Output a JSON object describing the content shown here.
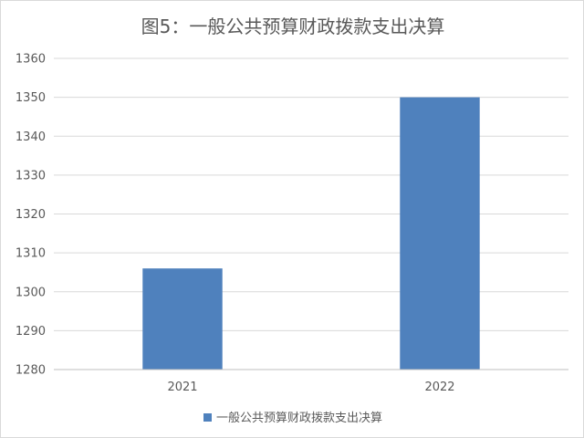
{
  "chart_data": {
    "type": "bar",
    "title": "图5：一般公共预算财政拨款支出决算",
    "categories": [
      "2021",
      "2022"
    ],
    "series": [
      {
        "name": "一般公共预算财政拨款支出决算",
        "values": [
          1306,
          1350
        ],
        "color": "#4f81bd"
      }
    ],
    "ylim": [
      1280,
      1360
    ],
    "yticks": [
      1280,
      1290,
      1300,
      1310,
      1320,
      1330,
      1340,
      1350,
      1360
    ],
    "grid": true,
    "legend": "bottom"
  }
}
